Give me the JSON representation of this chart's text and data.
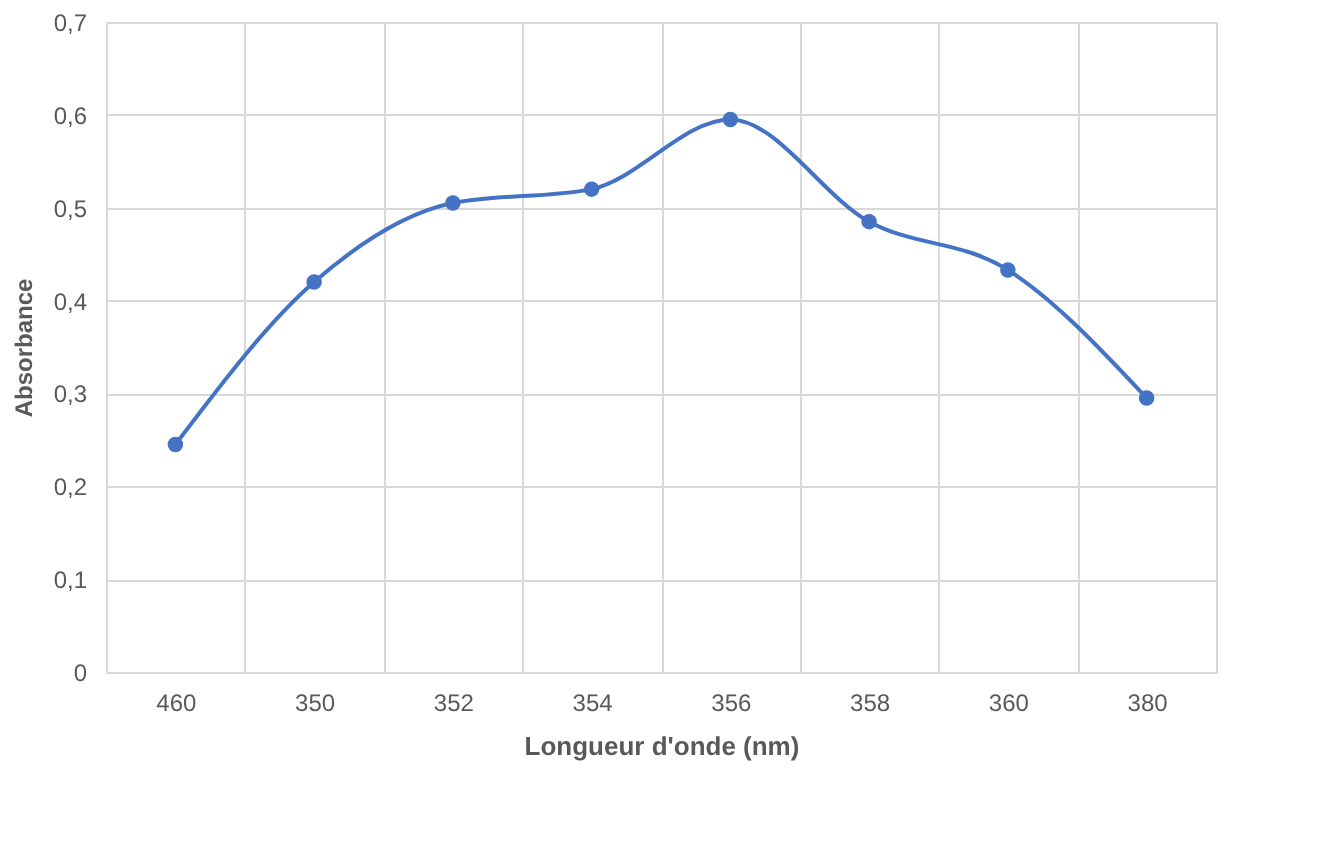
{
  "chart_data": {
    "type": "line",
    "xlabel": "Longueur d'onde (nm)",
    "ylabel": "Absorbance",
    "categories": [
      "460",
      "350",
      "352",
      "354",
      "356",
      "358",
      "360",
      "380"
    ],
    "series": [
      {
        "color": "#4472c4",
        "values": [
          0.245,
          0.42,
          0.505,
          0.52,
          0.595,
          0.485,
          0.433,
          0.295
        ]
      }
    ],
    "ylim": [
      0,
      0.7
    ],
    "yticks": [
      {
        "value": 0,
        "label": "0"
      },
      {
        "value": 0.1,
        "label": "0,1"
      },
      {
        "value": 0.2,
        "label": "0,2"
      },
      {
        "value": 0.3,
        "label": "0,3"
      },
      {
        "value": 0.4,
        "label": "0,4"
      },
      {
        "value": 0.5,
        "label": "0,5"
      },
      {
        "value": 0.6,
        "label": "0,6"
      },
      {
        "value": 0.7,
        "label": "0,7"
      }
    ],
    "grid": true,
    "marker": "circle",
    "line_style": "solid"
  }
}
